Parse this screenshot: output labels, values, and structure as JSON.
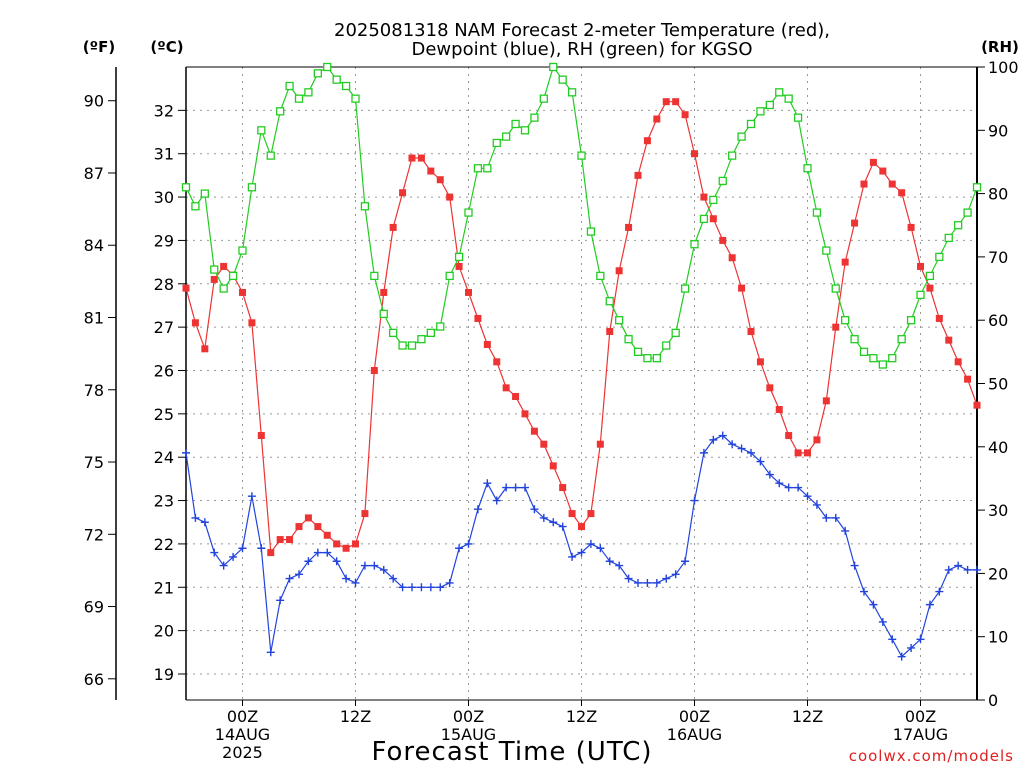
{
  "chart_data": {
    "type": "line",
    "title_line1": "2025081318 NAM Forecast 2-meter Temperature (red),",
    "title_line2": "Dewpoint (blue), RH (green) for KGSO",
    "xlabel": "Forecast Time (UTC)",
    "credit": "coolwx.com/models",
    "units": {
      "left_outer": "(ºF)",
      "left_inner": "(ºC)",
      "right": "(RH)"
    },
    "x_range_hours": [
      0,
      84
    ],
    "celsius_range": [
      18.4,
      33.0
    ],
    "rh_range": [
      0,
      100
    ],
    "fahrenheit_ticks": [
      "66",
      "69",
      "72",
      "75",
      "78",
      "81",
      "84",
      "87",
      "90"
    ],
    "celsius_ticks": [
      "19",
      "20",
      "21",
      "22",
      "23",
      "24",
      "25",
      "26",
      "27",
      "28",
      "29",
      "30",
      "31",
      "32"
    ],
    "rh_ticks": [
      "0",
      "10",
      "20",
      "30",
      "40",
      "50",
      "60",
      "70",
      "80",
      "90",
      "100"
    ],
    "x_ticks": [
      {
        "hour": 6,
        "line1": "00Z",
        "line2": "14AUG",
        "line3": "2025"
      },
      {
        "hour": 18,
        "line1": "12Z",
        "line2": "",
        "line3": ""
      },
      {
        "hour": 30,
        "line1": "00Z",
        "line2": "15AUG",
        "line3": ""
      },
      {
        "hour": 42,
        "line1": "12Z",
        "line2": "",
        "line3": ""
      },
      {
        "hour": 54,
        "line1": "00Z",
        "line2": "16AUG",
        "line3": ""
      },
      {
        "hour": 66,
        "line1": "12Z",
        "line2": "",
        "line3": ""
      },
      {
        "hour": 78,
        "line1": "00Z",
        "line2": "17AUG",
        "line3": ""
      }
    ],
    "hours": [
      0,
      1,
      2,
      3,
      4,
      5,
      6,
      7,
      8,
      9,
      10,
      11,
      12,
      13,
      14,
      15,
      16,
      17,
      18,
      19,
      20,
      21,
      22,
      23,
      24,
      25,
      26,
      27,
      28,
      29,
      30,
      31,
      32,
      33,
      34,
      35,
      36,
      37,
      38,
      39,
      40,
      41,
      42,
      43,
      44,
      45,
      46,
      47,
      48,
      49,
      50,
      51,
      52,
      53,
      54,
      55,
      56,
      57,
      58,
      59,
      60,
      61,
      62,
      63,
      64,
      65,
      66,
      67,
      68,
      69,
      70,
      71,
      72,
      73,
      74,
      75,
      76,
      77,
      78,
      79,
      80,
      81,
      82,
      83,
      84
    ],
    "series": [
      {
        "name": "Temperature",
        "color": "#ee3333",
        "marker": "filled-square",
        "units": "C",
        "values": [
          27.9,
          27.1,
          26.5,
          28.1,
          28.4,
          28.2,
          27.8,
          27.1,
          24.5,
          21.8,
          22.1,
          22.1,
          22.4,
          22.6,
          22.4,
          22.2,
          22.0,
          21.9,
          22.0,
          22.7,
          26.0,
          27.8,
          29.3,
          30.1,
          30.9,
          30.9,
          30.6,
          30.4,
          30.0,
          28.4,
          27.8,
          27.2,
          26.6,
          26.2,
          25.6,
          25.4,
          25.0,
          24.6,
          24.3,
          23.8,
          23.3,
          22.7,
          22.4,
          22.7,
          24.3,
          26.9,
          28.3,
          29.3,
          30.5,
          31.3,
          31.8,
          32.2,
          32.2,
          31.9,
          31.0,
          30.0,
          29.5,
          29.0,
          28.6,
          27.9,
          26.9,
          26.2,
          25.6,
          25.1,
          24.5,
          24.1,
          24.1,
          24.4,
          25.3,
          27.0,
          28.5,
          29.4,
          30.3,
          30.8,
          30.6,
          30.3,
          30.1,
          29.3,
          28.4,
          27.9,
          27.2,
          26.7,
          26.2,
          25.8,
          25.2
        ]
      },
      {
        "name": "Dewpoint",
        "color": "#2244dd",
        "marker": "plus",
        "units": "C",
        "values": [
          24.1,
          22.6,
          22.5,
          21.8,
          21.5,
          21.7,
          21.9,
          23.1,
          21.9,
          19.5,
          20.7,
          21.2,
          21.3,
          21.6,
          21.8,
          21.8,
          21.6,
          21.2,
          21.1,
          21.5,
          21.5,
          21.4,
          21.2,
          21.0,
          21.0,
          21.0,
          21.0,
          21.0,
          21.1,
          21.9,
          22.0,
          22.8,
          23.4,
          23.0,
          23.3,
          23.3,
          23.3,
          22.8,
          22.6,
          22.5,
          22.4,
          21.7,
          21.8,
          22.0,
          21.9,
          21.6,
          21.5,
          21.2,
          21.1,
          21.1,
          21.1,
          21.2,
          21.3,
          21.6,
          23.0,
          24.1,
          24.4,
          24.5,
          24.3,
          24.2,
          24.1,
          23.9,
          23.6,
          23.4,
          23.3,
          23.3,
          23.1,
          22.9,
          22.6,
          22.6,
          22.3,
          21.5,
          20.9,
          20.6,
          20.2,
          19.8,
          19.4,
          19.6,
          19.8,
          20.6,
          20.9,
          21.4,
          21.5,
          21.4,
          21.4
        ]
      },
      {
        "name": "RH",
        "color": "#22cc22",
        "marker": "open-square",
        "units": "%",
        "values": [
          81,
          78,
          80,
          68,
          65,
          67,
          71,
          81,
          90,
          86,
          93,
          97,
          95,
          96,
          99,
          100,
          98,
          97,
          95,
          78,
          67,
          61,
          58,
          56,
          56,
          57,
          58,
          59,
          67,
          70,
          77,
          84,
          84,
          88,
          89,
          91,
          90,
          92,
          95,
          100,
          98,
          96,
          86,
          74,
          67,
          63,
          60,
          57,
          55,
          54,
          54,
          56,
          58,
          65,
          72,
          76,
          79,
          82,
          86,
          89,
          91,
          93,
          94,
          96,
          95,
          92,
          84,
          77,
          71,
          65,
          60,
          57,
          55,
          54,
          53,
          54,
          57,
          60,
          64,
          67,
          70,
          73,
          75,
          77,
          81
        ]
      }
    ],
    "grid": true,
    "legend": "none"
  }
}
